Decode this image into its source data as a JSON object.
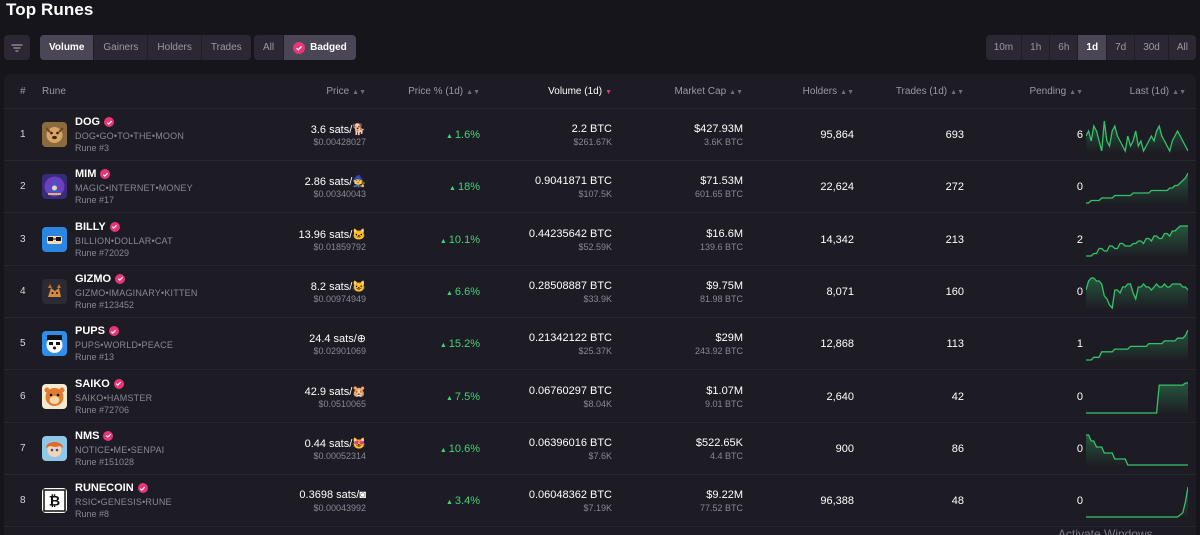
{
  "page": {
    "title": "Top Runes"
  },
  "toolbar": {
    "sort_tabs": [
      "Volume",
      "Gainers",
      "Holders",
      "Trades"
    ],
    "sort_active": "Volume",
    "filter_tabs": [
      "All",
      "Badged"
    ],
    "filter_active": "Badged",
    "time_tabs": [
      "10m",
      "1h",
      "6h",
      "1d",
      "7d",
      "30d",
      "All"
    ],
    "time_active": "1d"
  },
  "table": {
    "headers": {
      "num": "#",
      "rune": "Rune",
      "price": "Price",
      "price_pct": "Price % (1d)",
      "volume": "Volume (1d)",
      "market_cap": "Market Cap",
      "holders": "Holders",
      "trades": "Trades (1d)",
      "pending": "Pending",
      "last": "Last (1d)"
    },
    "rows": [
      {
        "num": "1",
        "name": "DOG",
        "full_name": "DOG•GO•TO•THE•MOON",
        "rune_no": "Rune #3",
        "price": "3.6 sats/🐕",
        "price_usd": "$0.00428027",
        "pct": "1.6%",
        "volume": "2.2 BTC",
        "volume_usd": "$261.67K",
        "mcap": "$427.93M",
        "mcap_btc": "3.6K BTC",
        "holders": "95,864",
        "trades": "693",
        "pending": "6",
        "spark": [
          6,
          7,
          5,
          8,
          7,
          5,
          3,
          9,
          5,
          4,
          7,
          8,
          6,
          5,
          4,
          3,
          6,
          4,
          5,
          7,
          4,
          5,
          3,
          4,
          5,
          6,
          5,
          7,
          8,
          6,
          5,
          4,
          3,
          5,
          6,
          7,
          6,
          5,
          4,
          3
        ]
      },
      {
        "num": "2",
        "name": "MIM",
        "full_name": "MAGIC•INTERNET•MONEY",
        "rune_no": "Rune #17",
        "price": "2.86 sats/🧙",
        "price_usd": "$0.00340043",
        "pct": "18%",
        "volume": "0.9041871 BTC",
        "volume_usd": "$107.5K",
        "mcap": "$71.53M",
        "mcap_btc": "601.65 BTC",
        "holders": "22,624",
        "trades": "272",
        "pending": "0",
        "spark": [
          2,
          2,
          3,
          3,
          3,
          3,
          4,
          4,
          4,
          4,
          4,
          5,
          5,
          5,
          5,
          5,
          5,
          5,
          6,
          6,
          6,
          6,
          6,
          6,
          6,
          7,
          7,
          7,
          7,
          7,
          7,
          7,
          8,
          8,
          9,
          9,
          10,
          11,
          12,
          14
        ]
      },
      {
        "num": "3",
        "name": "BILLY",
        "full_name": "BILLION•DOLLAR•CAT",
        "rune_no": "Rune #72029",
        "price": "13.96 sats/🐱",
        "price_usd": "$0.01859792",
        "pct": "10.1%",
        "volume": "0.44235642 BTC",
        "volume_usd": "$52.59K",
        "mcap": "$16.6M",
        "mcap_btc": "139.6 BTC",
        "holders": "14,342",
        "trades": "213",
        "pending": "2",
        "spark": [
          2,
          2,
          2,
          3,
          3,
          5,
          5,
          4,
          4,
          6,
          6,
          5,
          5,
          7,
          7,
          6,
          6,
          6,
          7,
          7,
          8,
          8,
          7,
          9,
          9,
          8,
          10,
          10,
          9,
          9,
          11,
          11,
          10,
          12,
          12,
          13,
          14,
          14,
          14,
          14
        ]
      },
      {
        "num": "4",
        "name": "GIZMO",
        "full_name": "GIZMO•IMAGINARY•KITTEN",
        "rune_no": "Rune #123452",
        "price": "8.2 sats/😺",
        "price_usd": "$0.00974949",
        "pct": "6.6%",
        "volume": "0.28508887 BTC",
        "volume_usd": "$33.9K",
        "mcap": "$9.75M",
        "mcap_btc": "81.98 BTC",
        "holders": "8,071",
        "trades": "160",
        "pending": "0",
        "spark": [
          9,
          12,
          13,
          13,
          12,
          12,
          11,
          7,
          6,
          4,
          3,
          9,
          9,
          8,
          10,
          10,
          11,
          11,
          8,
          6,
          10,
          10,
          11,
          10,
          10,
          9,
          10,
          11,
          10,
          10,
          11,
          10,
          10,
          11,
          11,
          11,
          11,
          10,
          10,
          9
        ]
      },
      {
        "num": "5",
        "name": "PUPS",
        "full_name": "PUPS•WORLD•PEACE",
        "rune_no": "Rune #13",
        "price": "24.4 sats/⊕",
        "price_usd": "$0.02901069",
        "pct": "15.2%",
        "volume": "0.21342122 BTC",
        "volume_usd": "$25.37K",
        "mcap": "$29M",
        "mcap_btc": "243.92 BTC",
        "holders": "12,868",
        "trades": "113",
        "pending": "1",
        "spark": [
          2,
          2,
          2,
          3,
          3,
          3,
          5,
          5,
          5,
          5,
          5,
          6,
          6,
          6,
          6,
          6,
          6,
          7,
          7,
          7,
          7,
          7,
          7,
          7,
          8,
          8,
          8,
          8,
          8,
          8,
          9,
          9,
          9,
          9,
          9,
          10,
          10,
          10,
          11,
          13
        ]
      },
      {
        "num": "6",
        "name": "SAIKO",
        "full_name": "SAIKO•HAMSTER",
        "rune_no": "Rune #72706",
        "price": "42.9 sats/🐹",
        "price_usd": "$0.0510065",
        "pct": "7.5%",
        "volume": "0.06760297 BTC",
        "volume_usd": "$8.04K",
        "mcap": "$1.07M",
        "mcap_btc": "9.01 BTC",
        "holders": "2,640",
        "trades": "42",
        "pending": "0",
        "spark": [
          2,
          2,
          2,
          2,
          2,
          2,
          2,
          2,
          2,
          2,
          2,
          2,
          2,
          2,
          2,
          2,
          2,
          2,
          2,
          2,
          2,
          2,
          2,
          2,
          2,
          2,
          2,
          2,
          15,
          15,
          15,
          15,
          15,
          15,
          15,
          15,
          15,
          15,
          16,
          16
        ]
      },
      {
        "num": "7",
        "name": "NMS",
        "full_name": "NOTICE•ME•SENPAI",
        "rune_no": "Rune #151028",
        "price": "0.44 sats/😻",
        "price_usd": "$0.00052314",
        "pct": "10.6%",
        "volume": "0.06396016 BTC",
        "volume_usd": "$7.6K",
        "mcap": "$522.65K",
        "mcap_btc": "4.4 BTC",
        "holders": "900",
        "trades": "86",
        "pending": "0",
        "spark": [
          13,
          13,
          12,
          12,
          11,
          11,
          11,
          10,
          10,
          10,
          10,
          9,
          9,
          9,
          9,
          9,
          8,
          8,
          8,
          8,
          8,
          8,
          8,
          8,
          8,
          8,
          8,
          8,
          8,
          8,
          8,
          8,
          8,
          8,
          8,
          8,
          8,
          8,
          8,
          8
        ]
      },
      {
        "num": "8",
        "name": "RUNECOIN",
        "full_name": "RSIC•GENESIS•RUNE",
        "rune_no": "Rune #8",
        "price": "0.3698 sats/◙",
        "price_usd": "$0.00043992",
        "pct": "3.4%",
        "volume": "0.06048362 BTC",
        "volume_usd": "$7.19K",
        "mcap": "$9.22M",
        "mcap_btc": "77.52 BTC",
        "holders": "96,388",
        "trades": "48",
        "pending": "0",
        "spark": [
          1,
          1,
          1,
          1,
          1,
          1,
          1,
          1,
          1,
          1,
          1,
          1,
          1,
          1,
          1,
          1,
          1,
          1,
          1,
          1,
          1,
          1,
          1,
          1,
          1,
          1,
          1,
          1,
          1,
          1,
          1,
          1,
          1,
          1,
          1,
          1,
          2,
          3,
          8,
          15
        ]
      }
    ]
  },
  "colors": {
    "accent": "#e8357a",
    "positive": "#3fd57a",
    "spark_line": "#35c26a"
  },
  "icons": {
    "filter": "filter-icon",
    "badge": "check-badge-icon",
    "sort": "sort-arrows-icon"
  }
}
